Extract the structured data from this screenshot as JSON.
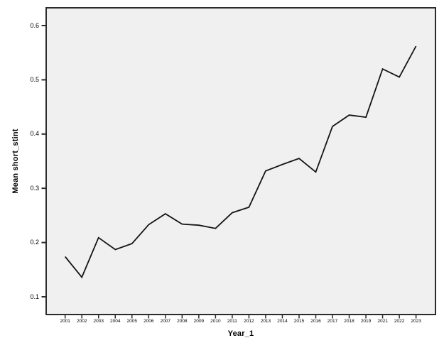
{
  "figure": {
    "x_axis_title": "Year_1",
    "y_axis_title": "Mean short_stint"
  },
  "chart_data": {
    "type": "line",
    "x": [
      "2001",
      "2002",
      "2003",
      "2004",
      "2005",
      "2006",
      "2007",
      "2008",
      "2009",
      "2010",
      "2011",
      "2012",
      "2013",
      "2014",
      "2015",
      "2016",
      "2017",
      "2018",
      "2019",
      "2021",
      "2022",
      "2023"
    ],
    "values": [
      0.174,
      0.136,
      0.209,
      0.187,
      0.198,
      0.233,
      0.253,
      0.234,
      0.232,
      0.226,
      0.255,
      0.265,
      0.332,
      0.344,
      0.355,
      0.33,
      0.414,
      0.435,
      0.431,
      0.52,
      0.505,
      0.562
    ],
    "title": "",
    "xlabel": "Year_1",
    "ylabel": "Mean short_stint",
    "y_tick_labels": [
      "0.6",
      "0.5",
      "0.4",
      "0.3",
      "0.2",
      "0.1"
    ],
    "y_ticks": [
      0.6,
      0.5,
      0.4,
      0.3,
      0.2,
      0.1
    ],
    "ylim": [
      0.067,
      0.633
    ],
    "grid": false,
    "legend": null,
    "line_color": "#141414",
    "plot_bg_color": "#f0f0f0",
    "frame_color": "#2b2b2b"
  }
}
